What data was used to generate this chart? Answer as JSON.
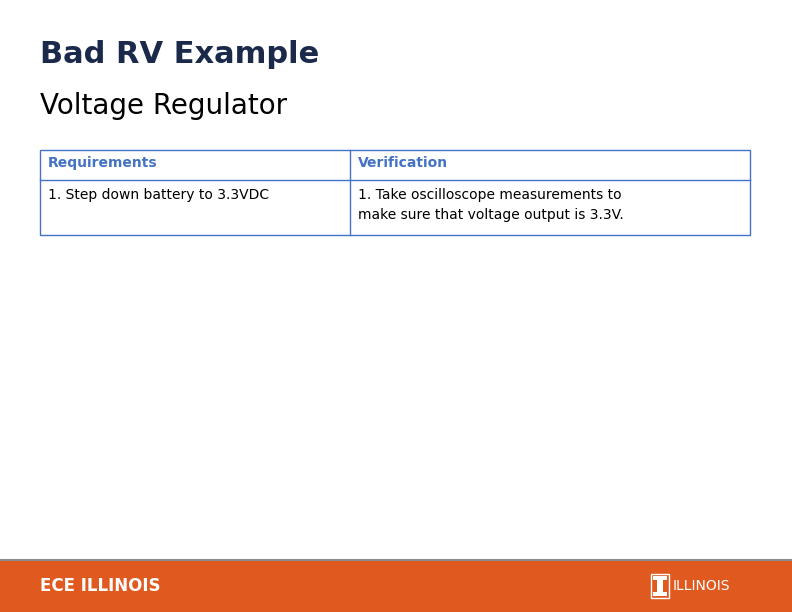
{
  "title": "Bad RV Example",
  "subtitle": "Voltage Regulator",
  "title_color": "#1B2A4A",
  "subtitle_color": "#000000",
  "table_header_color": "#4472C4",
  "table_border_color": "#4472C4",
  "table_text_color": "#000000",
  "col1_header": "Requirements",
  "col2_header": "Verification",
  "col1_content": "1. Step down battery to 3.3VDC",
  "col2_content": "1. Take oscilloscope measurements to\nmake sure that voltage output is 3.3V.",
  "footer_bg_color": "#E05A20",
  "footer_separator_color": "#8B8B8B",
  "footer_text_left": "ECE ILLINOIS",
  "footer_text_right": "ILLINOIS",
  "background_color": "#FFFFFF",
  "title_fontsize": 22,
  "subtitle_fontsize": 20,
  "table_fontsize": 10,
  "footer_fontsize": 12
}
